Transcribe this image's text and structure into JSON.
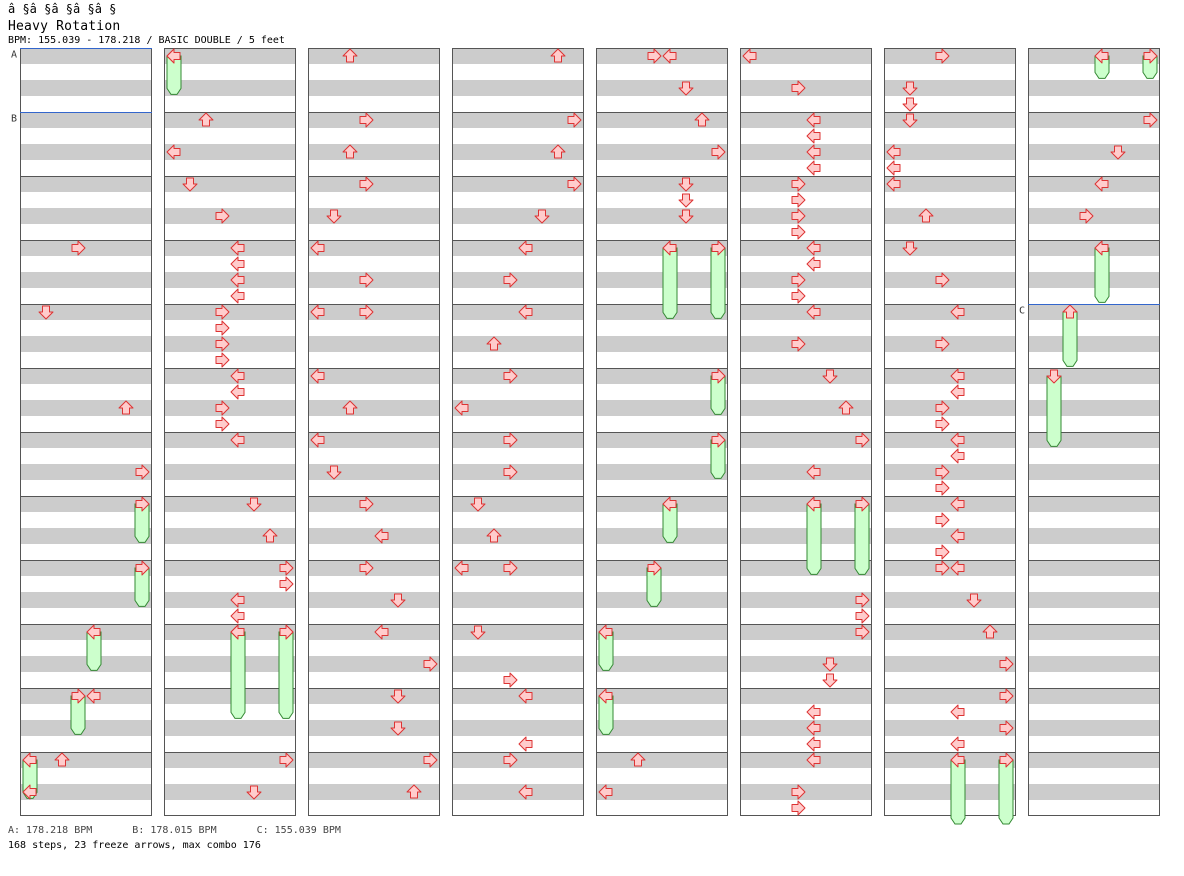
{
  "header": {
    "artist": "â §â §â §â §â §",
    "title": "Heavy Rotation",
    "info": "BPM: 155.039 - 178.218 / BASIC DOUBLE / 5 feet"
  },
  "footer": {
    "bpm_a": "A: 178.218 BPM",
    "bpm_b": "B: 178.015 BPM",
    "bpm_c": "C: 155.039 BPM",
    "stats": "168 steps, 23 freeze arrows, max combo 176"
  },
  "chart_data": {
    "type": "stepchart",
    "mode": "BASIC DOUBLE",
    "difficulty_feet": 5,
    "columns": 8,
    "measures_per_column": 12,
    "panels": [
      "L",
      "D",
      "U",
      "R",
      "L",
      "D",
      "U",
      "R"
    ],
    "colors": {
      "note_fill": "#ffcccc",
      "note_stroke": "#dd3333",
      "freeze_fill": "#ccffcc",
      "freeze_stroke": "#338833",
      "beat_band": "#cccccc",
      "bpm_line": "#3366cc"
    },
    "bpm_changes": [
      {
        "label": "A",
        "bpm": 178.218,
        "column": 0,
        "measure": 0
      },
      {
        "label": "B",
        "bpm": 178.015,
        "column": 0,
        "measure": 1
      },
      {
        "label": "C",
        "bpm": 155.039,
        "column": 7,
        "measure": 4
      }
    ],
    "notes": [
      {
        "c": 0,
        "r": 12,
        "d": 3
      },
      {
        "c": 0,
        "r": 16,
        "d": 1
      },
      {
        "c": 0,
        "r": 22,
        "d": 6
      },
      {
        "c": 0,
        "r": 26,
        "d": 7
      },
      {
        "c": 0,
        "r": 40,
        "d": 4
      },
      {
        "c": 0,
        "r": 44,
        "d": 2
      },
      {
        "c": 0,
        "r": 46,
        "d": 0
      },
      {
        "c": 1,
        "r": 0,
        "d": 0
      },
      {
        "c": 1,
        "r": 4,
        "d": 2
      },
      {
        "c": 1,
        "r": 6,
        "d": 0
      },
      {
        "c": 1,
        "r": 8,
        "d": 1
      },
      {
        "c": 1,
        "r": 10,
        "d": 3
      },
      {
        "c": 1,
        "r": 12,
        "d": 4
      },
      {
        "c": 1,
        "r": 13,
        "d": 4
      },
      {
        "c": 1,
        "r": 14,
        "d": 4
      },
      {
        "c": 1,
        "r": 15,
        "d": 4
      },
      {
        "c": 1,
        "r": 16,
        "d": 3
      },
      {
        "c": 1,
        "r": 17,
        "d": 3
      },
      {
        "c": 1,
        "r": 18,
        "d": 3
      },
      {
        "c": 1,
        "r": 19,
        "d": 3
      },
      {
        "c": 1,
        "r": 20,
        "d": 4
      },
      {
        "c": 1,
        "r": 21,
        "d": 4
      },
      {
        "c": 1,
        "r": 22,
        "d": 3
      },
      {
        "c": 1,
        "r": 23,
        "d": 3
      },
      {
        "c": 1,
        "r": 24,
        "d": 4
      },
      {
        "c": 1,
        "r": 28,
        "d": 5
      },
      {
        "c": 1,
        "r": 30,
        "d": 6
      },
      {
        "c": 1,
        "r": 32,
        "d": 7
      },
      {
        "c": 1,
        "r": 33,
        "d": 7
      },
      {
        "c": 1,
        "r": 34,
        "d": 4
      },
      {
        "c": 1,
        "r": 35,
        "d": 4
      },
      {
        "c": 1,
        "r": 36,
        "d": 4
      },
      {
        "c": 1,
        "r": 36,
        "d": 7
      },
      {
        "c": 1,
        "r": 44,
        "d": 7
      },
      {
        "c": 1,
        "r": 46,
        "d": 5
      },
      {
        "c": 2,
        "r": 0,
        "d": 2
      },
      {
        "c": 2,
        "r": 4,
        "d": 3
      },
      {
        "c": 2,
        "r": 6,
        "d": 2
      },
      {
        "c": 2,
        "r": 8,
        "d": 3
      },
      {
        "c": 2,
        "r": 10,
        "d": 1
      },
      {
        "c": 2,
        "r": 12,
        "d": 0
      },
      {
        "c": 2,
        "r": 14,
        "d": 3
      },
      {
        "c": 2,
        "r": 16,
        "d": 0
      },
      {
        "c": 2,
        "r": 16,
        "d": 3
      },
      {
        "c": 2,
        "r": 20,
        "d": 0
      },
      {
        "c": 2,
        "r": 22,
        "d": 2
      },
      {
        "c": 2,
        "r": 24,
        "d": 0
      },
      {
        "c": 2,
        "r": 26,
        "d": 1
      },
      {
        "c": 2,
        "r": 28,
        "d": 3
      },
      {
        "c": 2,
        "r": 30,
        "d": 4
      },
      {
        "c": 2,
        "r": 32,
        "d": 3
      },
      {
        "c": 2,
        "r": 34,
        "d": 5
      },
      {
        "c": 2,
        "r": 36,
        "d": 4
      },
      {
        "c": 2,
        "r": 38,
        "d": 7
      },
      {
        "c": 2,
        "r": 40,
        "d": 5
      },
      {
        "c": 2,
        "r": 42,
        "d": 5
      },
      {
        "c": 2,
        "r": 44,
        "d": 7
      },
      {
        "c": 2,
        "r": 46,
        "d": 6
      },
      {
        "c": 3,
        "r": 0,
        "d": 6
      },
      {
        "c": 3,
        "r": 4,
        "d": 7
      },
      {
        "c": 3,
        "r": 6,
        "d": 6
      },
      {
        "c": 3,
        "r": 8,
        "d": 7
      },
      {
        "c": 3,
        "r": 10,
        "d": 5
      },
      {
        "c": 3,
        "r": 12,
        "d": 4
      },
      {
        "c": 3,
        "r": 14,
        "d": 3
      },
      {
        "c": 3,
        "r": 16,
        "d": 4
      },
      {
        "c": 3,
        "r": 18,
        "d": 2
      },
      {
        "c": 3,
        "r": 20,
        "d": 3
      },
      {
        "c": 3,
        "r": 22,
        "d": 0
      },
      {
        "c": 3,
        "r": 24,
        "d": 3
      },
      {
        "c": 3,
        "r": 26,
        "d": 3
      },
      {
        "c": 3,
        "r": 28,
        "d": 1
      },
      {
        "c": 3,
        "r": 30,
        "d": 2
      },
      {
        "c": 3,
        "r": 32,
        "d": 0
      },
      {
        "c": 3,
        "r": 32,
        "d": 3
      },
      {
        "c": 3,
        "r": 36,
        "d": 1
      },
      {
        "c": 3,
        "r": 39,
        "d": 3
      },
      {
        "c": 3,
        "r": 40,
        "d": 4
      },
      {
        "c": 3,
        "r": 43,
        "d": 4
      },
      {
        "c": 3,
        "r": 44,
        "d": 3
      },
      {
        "c": 3,
        "r": 46,
        "d": 4
      },
      {
        "c": 4,
        "r": 0,
        "d": 3
      },
      {
        "c": 4,
        "r": 0,
        "d": 4
      },
      {
        "c": 4,
        "r": 2,
        "d": 5
      },
      {
        "c": 4,
        "r": 4,
        "d": 6
      },
      {
        "c": 4,
        "r": 6,
        "d": 7
      },
      {
        "c": 4,
        "r": 8,
        "d": 5
      },
      {
        "c": 4,
        "r": 9,
        "d": 5
      },
      {
        "c": 4,
        "r": 10,
        "d": 5
      },
      {
        "c": 4,
        "r": 44,
        "d": 2
      },
      {
        "c": 4,
        "r": 46,
        "d": 0
      },
      {
        "c": 5,
        "r": 0,
        "d": 0
      },
      {
        "c": 5,
        "r": 2,
        "d": 3
      },
      {
        "c": 5,
        "r": 4,
        "d": 4
      },
      {
        "c": 5,
        "r": 5,
        "d": 4
      },
      {
        "c": 5,
        "r": 6,
        "d": 4
      },
      {
        "c": 5,
        "r": 7,
        "d": 4
      },
      {
        "c": 5,
        "r": 8,
        "d": 3
      },
      {
        "c": 5,
        "r": 9,
        "d": 3
      },
      {
        "c": 5,
        "r": 10,
        "d": 3
      },
      {
        "c": 5,
        "r": 11,
        "d": 3
      },
      {
        "c": 5,
        "r": 12,
        "d": 4
      },
      {
        "c": 5,
        "r": 13,
        "d": 4
      },
      {
        "c": 5,
        "r": 14,
        "d": 3
      },
      {
        "c": 5,
        "r": 15,
        "d": 3
      },
      {
        "c": 5,
        "r": 16,
        "d": 4
      },
      {
        "c": 5,
        "r": 18,
        "d": 3
      },
      {
        "c": 5,
        "r": 20,
        "d": 5
      },
      {
        "c": 5,
        "r": 22,
        "d": 6
      },
      {
        "c": 5,
        "r": 24,
        "d": 7
      },
      {
        "c": 5,
        "r": 26,
        "d": 4
      },
      {
        "c": 5,
        "r": 34,
        "d": 7
      },
      {
        "c": 5,
        "r": 35,
        "d": 7
      },
      {
        "c": 5,
        "r": 36,
        "d": 7
      },
      {
        "c": 5,
        "r": 38,
        "d": 5
      },
      {
        "c": 5,
        "r": 39,
        "d": 5
      },
      {
        "c": 5,
        "r": 41,
        "d": 4
      },
      {
        "c": 5,
        "r": 42,
        "d": 4
      },
      {
        "c": 5,
        "r": 43,
        "d": 4
      },
      {
        "c": 5,
        "r": 44,
        "d": 4
      },
      {
        "c": 5,
        "r": 46,
        "d": 3
      },
      {
        "c": 5,
        "r": 47,
        "d": 3
      },
      {
        "c": 6,
        "r": 0,
        "d": 3
      },
      {
        "c": 6,
        "r": 2,
        "d": 1
      },
      {
        "c": 6,
        "r": 3,
        "d": 1
      },
      {
        "c": 6,
        "r": 4,
        "d": 1
      },
      {
        "c": 6,
        "r": 6,
        "d": 0
      },
      {
        "c": 6,
        "r": 7,
        "d": 0
      },
      {
        "c": 6,
        "r": 8,
        "d": 0
      },
      {
        "c": 6,
        "r": 10,
        "d": 2
      },
      {
        "c": 6,
        "r": 12,
        "d": 1
      },
      {
        "c": 6,
        "r": 14,
        "d": 3
      },
      {
        "c": 6,
        "r": 16,
        "d": 4
      },
      {
        "c": 6,
        "r": 18,
        "d": 3
      },
      {
        "c": 6,
        "r": 20,
        "d": 4
      },
      {
        "c": 6,
        "r": 21,
        "d": 4
      },
      {
        "c": 6,
        "r": 22,
        "d": 3
      },
      {
        "c": 6,
        "r": 23,
        "d": 3
      },
      {
        "c": 6,
        "r": 24,
        "d": 4
      },
      {
        "c": 6,
        "r": 25,
        "d": 4
      },
      {
        "c": 6,
        "r": 26,
        "d": 3
      },
      {
        "c": 6,
        "r": 27,
        "d": 3
      },
      {
        "c": 6,
        "r": 28,
        "d": 4
      },
      {
        "c": 6,
        "r": 29,
        "d": 3
      },
      {
        "c": 6,
        "r": 30,
        "d": 4
      },
      {
        "c": 6,
        "r": 31,
        "d": 3
      },
      {
        "c": 6,
        "r": 32,
        "d": 3
      },
      {
        "c": 6,
        "r": 32,
        "d": 4
      },
      {
        "c": 6,
        "r": 34,
        "d": 5
      },
      {
        "c": 6,
        "r": 36,
        "d": 6
      },
      {
        "c": 6,
        "r": 38,
        "d": 7
      },
      {
        "c": 6,
        "r": 40,
        "d": 7
      },
      {
        "c": 6,
        "r": 41,
        "d": 4
      },
      {
        "c": 6,
        "r": 42,
        "d": 7
      },
      {
        "c": 6,
        "r": 43,
        "d": 4
      },
      {
        "c": 7,
        "r": 4,
        "d": 7
      },
      {
        "c": 7,
        "r": 6,
        "d": 5
      },
      {
        "c": 7,
        "r": 8,
        "d": 4
      },
      {
        "c": 7,
        "r": 10,
        "d": 3
      }
    ],
    "freezes": [
      {
        "c": 0,
        "start": 28,
        "end": 30.4,
        "d": 7
      },
      {
        "c": 0,
        "start": 32,
        "end": 34.4,
        "d": 7
      },
      {
        "c": 0,
        "start": 36,
        "end": 38.4,
        "d": 4
      },
      {
        "c": 0,
        "start": 40,
        "end": 42.4,
        "d": 3
      },
      {
        "c": 0,
        "start": 44,
        "end": 46.4,
        "d": 0
      },
      {
        "c": 1,
        "start": 0,
        "end": 2.4,
        "d": 0
      },
      {
        "c": 1,
        "start": 36,
        "end": 41.4,
        "d": 4
      },
      {
        "c": 1,
        "start": 36,
        "end": 41.4,
        "d": 7
      },
      {
        "c": 4,
        "start": 12,
        "end": 16.4,
        "d": 4
      },
      {
        "c": 4,
        "start": 12,
        "end": 16.4,
        "d": 7
      },
      {
        "c": 4,
        "start": 20,
        "end": 22.4,
        "d": 7
      },
      {
        "c": 4,
        "start": 24,
        "end": 26.4,
        "d": 7
      },
      {
        "c": 4,
        "start": 28,
        "end": 30.4,
        "d": 4
      },
      {
        "c": 4,
        "start": 32,
        "end": 34.4,
        "d": 3
      },
      {
        "c": 4,
        "start": 36,
        "end": 38.4,
        "d": 0
      },
      {
        "c": 4,
        "start": 40,
        "end": 42.4,
        "d": 0
      },
      {
        "c": 5,
        "start": 28,
        "end": 32.4,
        "d": 4
      },
      {
        "c": 5,
        "start": 28,
        "end": 32.4,
        "d": 7
      },
      {
        "c": 6,
        "start": 44,
        "end": 48,
        "d": 4
      },
      {
        "c": 6,
        "start": 44,
        "end": 48,
        "d": 7
      },
      {
        "c": 7,
        "start": 0,
        "end": 1.4,
        "d": 4
      },
      {
        "c": 7,
        "start": 0,
        "end": 1.4,
        "d": 7
      },
      {
        "c": 7,
        "start": 12,
        "end": 15.4,
        "d": 4
      },
      {
        "c": 7,
        "start": 16,
        "end": 19.4,
        "d": 2
      },
      {
        "c": 7,
        "start": 20,
        "end": 24.4,
        "d": 1
      }
    ]
  }
}
